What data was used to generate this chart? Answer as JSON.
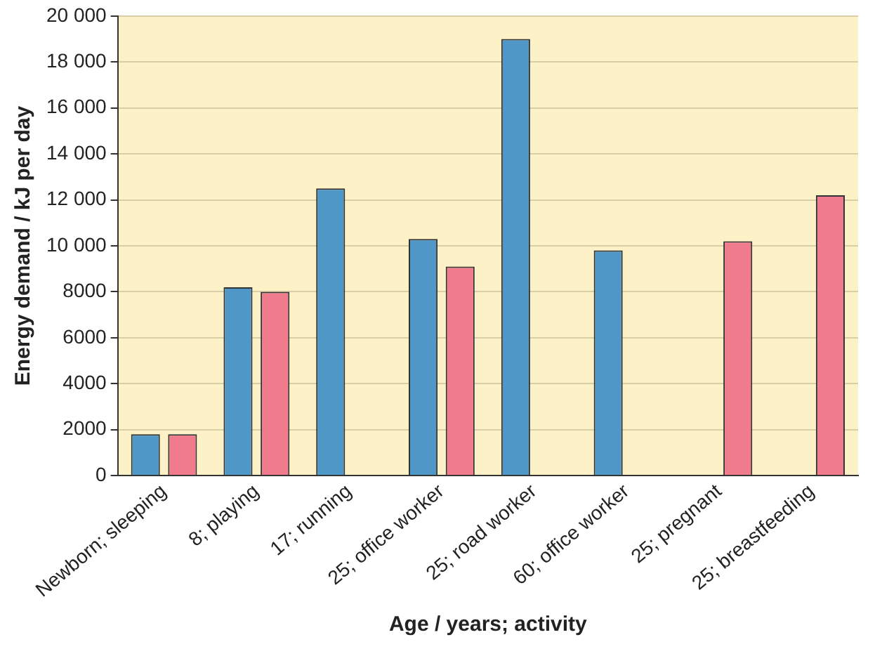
{
  "chart_data": {
    "type": "bar",
    "xlabel": "Age / years; activity",
    "ylabel": "Energy demand / kJ per day",
    "categories": [
      "Newborn; sleeping",
      "8; playing",
      "17; running",
      "25; office worker",
      "25; road worker",
      "60; office worker",
      "25; pregnant",
      "25; breastfeeding"
    ],
    "series": [
      {
        "color": "#4f97c6",
        "values": [
          1800,
          8200,
          12500,
          10300,
          19000,
          9800,
          null,
          null
        ]
      },
      {
        "color": "#f07b8c",
        "values": [
          1800,
          8000,
          null,
          9100,
          null,
          null,
          10200,
          12200
        ]
      }
    ],
    "ylim": [
      0,
      20000
    ],
    "yticks": [
      0,
      2000,
      4000,
      6000,
      8000,
      {
        "value": 10000,
        "label": "10 000"
      },
      {
        "value": 12000,
        "label": "12 000"
      },
      {
        "value": 14000,
        "label": "14 000"
      },
      {
        "value": 16000,
        "label": "16 000"
      },
      {
        "value": 18000,
        "label": "18 000"
      },
      {
        "value": 20000,
        "label": "20 000"
      }
    ],
    "grid": "y",
    "legend": false
  }
}
